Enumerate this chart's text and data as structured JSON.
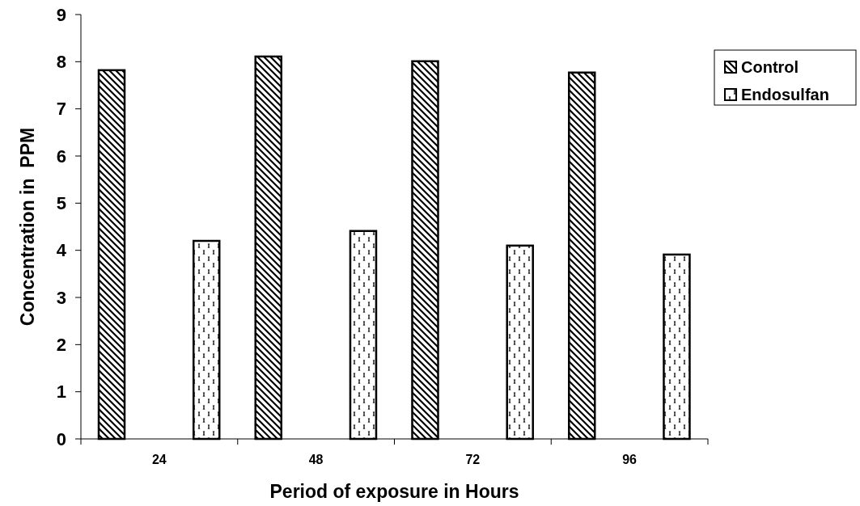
{
  "chart_data": {
    "type": "bar",
    "xlabel": "Period of exposure in Hours",
    "ylabel": "Concentration in  PPM",
    "categories": [
      "24",
      "48",
      "72",
      "96"
    ],
    "ylim": [
      0,
      9
    ],
    "yticks": [
      0,
      1,
      2,
      3,
      4,
      5,
      6,
      7,
      8,
      9
    ],
    "legend": "top right",
    "series": [
      {
        "name": "Control",
        "color": "#000000",
        "values": [
          7.82,
          8.11,
          8.01,
          7.77
        ]
      },
      {
        "name": "Endosulfan",
        "color": "#000000",
        "values": [
          4.2,
          4.41,
          4.1,
          3.91
        ]
      }
    ]
  }
}
